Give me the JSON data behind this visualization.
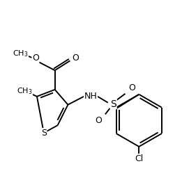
{
  "background_color": "#ffffff",
  "line_color": "#000000",
  "line_width": 1.4,
  "fig_width": 2.71,
  "fig_height": 2.49,
  "dpi": 100,
  "xlim": [
    0,
    271
  ],
  "ylim": [
    0,
    249
  ]
}
